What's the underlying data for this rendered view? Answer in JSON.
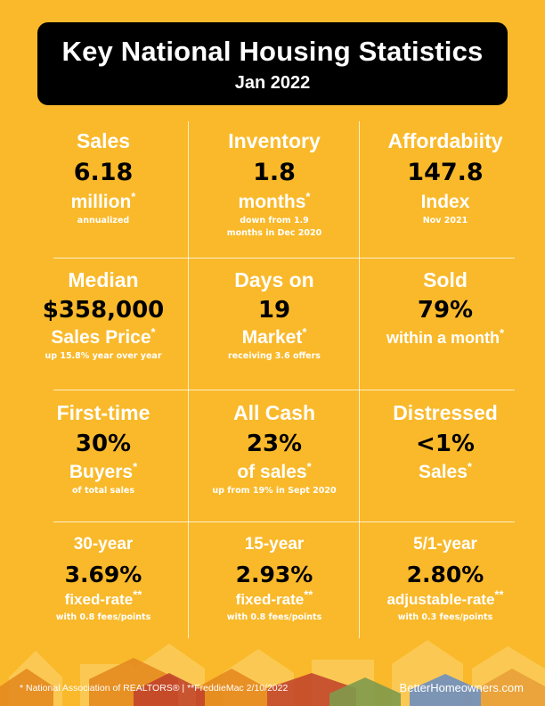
{
  "header": {
    "title": "Key National Housing Statistics",
    "subtitle": "Jan 2022"
  },
  "stats": [
    {
      "label": "Sales",
      "value": "6.18",
      "unit": "million",
      "star": "*",
      "note": "annualized"
    },
    {
      "label": "Inventory",
      "value": "1.8",
      "unit": "months",
      "star": "*",
      "note": "down from 1.9 months in Dec 2020"
    },
    {
      "label": "Affordabiity",
      "value": "147.8",
      "unit": "Index",
      "star": "",
      "note": "Nov 2021"
    },
    {
      "label": "Median",
      "value": "$358,000",
      "unit": "Sales Price",
      "star": "*",
      "note": "up 15.8% year over year"
    },
    {
      "label": "Days on",
      "value": "19",
      "unit": "Market",
      "star": "*",
      "note": "receiving 3.6 offers"
    },
    {
      "label": "Sold",
      "value": "79%",
      "unit": "within a month",
      "star": "*",
      "note": ""
    },
    {
      "label": "First-time",
      "value": "30%",
      "unit": "Buyers",
      "star": "*",
      "note": "of total sales"
    },
    {
      "label": "All Cash",
      "value": "23%",
      "unit": "of sales",
      "star": "*",
      "note": "up from 19% in Sept 2020"
    },
    {
      "label": "Distressed",
      "value": "<1%",
      "unit": "Sales",
      "star": "*",
      "note": ""
    },
    {
      "label": "30-year",
      "value": "3.69%",
      "unit": "fixed-rate",
      "star": "**",
      "note": "with 0.8 fees/points"
    },
    {
      "label": "15-year",
      "value": "2.93%",
      "unit": "fixed-rate",
      "star": "**",
      "note": "with 0.8 fees/points"
    },
    {
      "label": "5/1-year",
      "value": "2.80%",
      "unit": "adjustable-rate",
      "star": "**",
      "note": "with 0.3 fees/points"
    }
  ],
  "footer": {
    "sources": "* National Association of REALTORS® | **FreddieMac 2/10/2022",
    "website": "BetterHomeowners.com"
  },
  "colors": {
    "background": "#F9B92A",
    "banner": "#000000",
    "text_light": "#FFFFFF",
    "text_dark": "#000000"
  }
}
